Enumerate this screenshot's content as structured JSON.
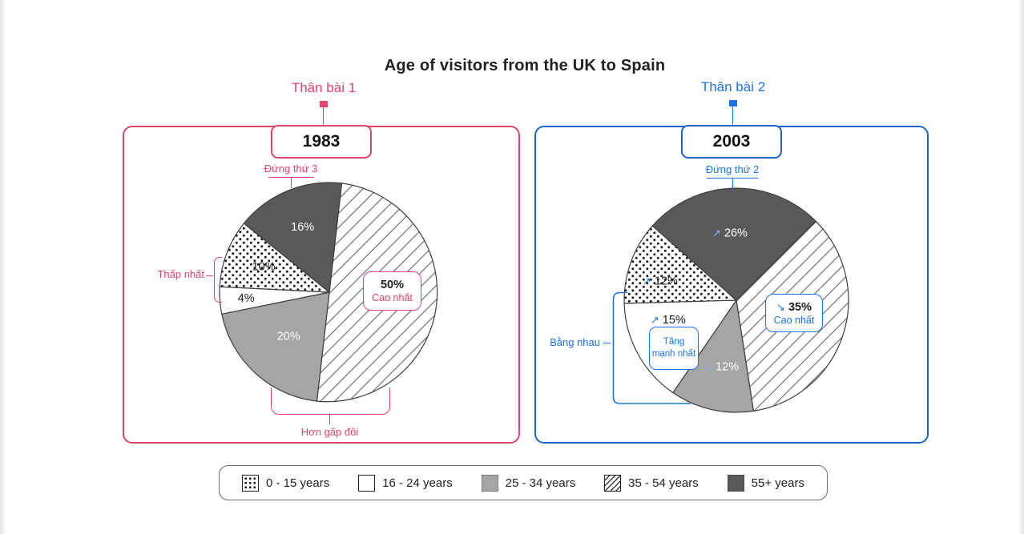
{
  "title": "Age of visitors from the UK to Spain",
  "colors": {
    "pink": "#E2436B",
    "blue": "#1A73E8",
    "blue_border": "#1B66CE",
    "dark_slice": "#58595B",
    "gray_slice": "#A5A5A7",
    "text_dark": "#202124",
    "legend_border": "#6B6B6B"
  },
  "panels": [
    {
      "year": "1983",
      "callout": "Thân bài 1",
      "annotations": {
        "rank": "Đứng thứ 3",
        "lowest": "Thấp nhất",
        "box_value": "50%",
        "box_note": "Cao nhất",
        "bottom": "Hơn gấp đôi"
      }
    },
    {
      "year": "2003",
      "callout": "Thân bài 2",
      "annotations": {
        "rank": "Đứng thứ 2",
        "equal": "Bằng nhau",
        "strongest": "Tăng mạnh nhất",
        "box_arrow": "↘",
        "box_value": "35%",
        "box_note": "Cao nhất"
      }
    }
  ],
  "legend": [
    {
      "label": "0 - 15 years",
      "pattern": "dotted"
    },
    {
      "label": "16 - 24 years",
      "pattern": "white"
    },
    {
      "label": "25 - 34 years",
      "pattern": "gray"
    },
    {
      "label": "35 - 54 years",
      "pattern": "hatch"
    },
    {
      "label": "55+ years",
      "pattern": "dark"
    }
  ],
  "chart_data": [
    {
      "type": "pie",
      "title": "1983",
      "unit": "percent of visitors",
      "slices": [
        {
          "category": "35 - 54 years",
          "value": 50,
          "pattern": "hatch",
          "annotation": "Cao nhất"
        },
        {
          "category": "25 - 34 years",
          "value": 20,
          "pattern": "gray"
        },
        {
          "category": "16 - 24 years",
          "value": 4,
          "pattern": "white",
          "annotation": "Thấp nhất"
        },
        {
          "category": "0 - 15 years",
          "value": 10,
          "pattern": "dotted"
        },
        {
          "category": "55+ years",
          "value": 16,
          "pattern": "dark",
          "annotation": "Đứng thứ 3"
        }
      ]
    },
    {
      "type": "pie",
      "title": "2003",
      "unit": "percent of visitors",
      "slices": [
        {
          "category": "35 - 54 years",
          "value": 35,
          "pattern": "hatch",
          "trend": "down",
          "annotation": "Cao nhất"
        },
        {
          "category": "25 - 34 years",
          "value": 12,
          "pattern": "gray",
          "trend": "down",
          "annotation": "Bằng nhau"
        },
        {
          "category": "16 - 24 years",
          "value": 15,
          "pattern": "white",
          "trend": "up",
          "annotation": "Tăng mạnh nhất"
        },
        {
          "category": "0 - 15 years",
          "value": 12,
          "pattern": "dotted",
          "trend": "up",
          "annotation": "Bằng nhau"
        },
        {
          "category": "55+ years",
          "value": 26,
          "pattern": "dark",
          "trend": "up",
          "annotation": "Đứng thứ 2"
        }
      ]
    }
  ]
}
